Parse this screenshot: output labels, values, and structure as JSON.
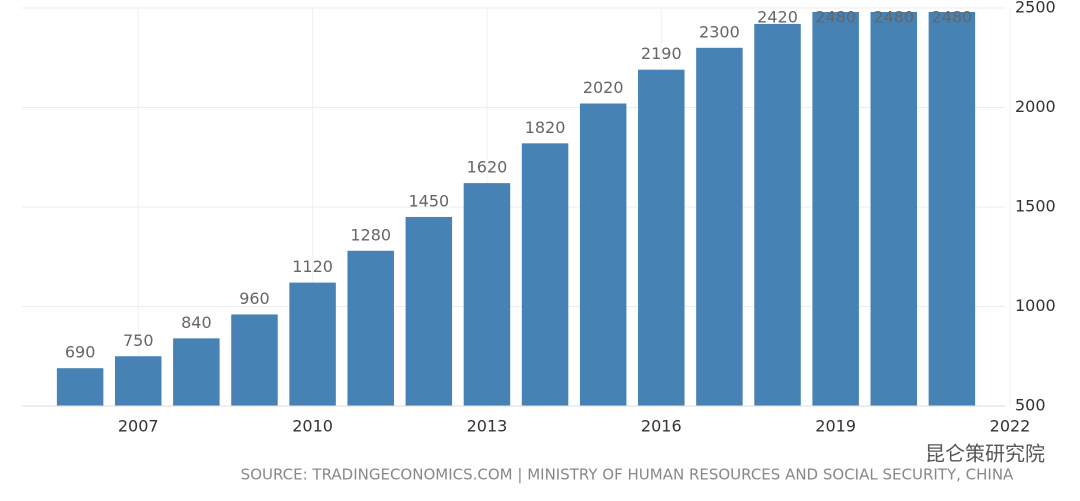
{
  "chart_data": {
    "type": "bar",
    "x": [
      2006,
      2007,
      2008,
      2009,
      2010,
      2011,
      2012,
      2013,
      2014,
      2015,
      2016,
      2017,
      2018,
      2019,
      2020,
      2021
    ],
    "values": [
      690,
      750,
      840,
      960,
      1120,
      1280,
      1450,
      1620,
      1820,
      2020,
      2190,
      2300,
      2420,
      2480,
      2480,
      2480
    ],
    "color": "#4682b4",
    "xlim": [
      2005,
      2022
    ],
    "xticks": [
      2007,
      2010,
      2013,
      2016,
      2019,
      2022
    ],
    "ylim": [
      500,
      2500
    ],
    "yticks": [
      500,
      1000,
      1500,
      2000,
      2500
    ],
    "grid": true,
    "source": "SOURCE: TRADINGECONOMICS.COM | MINISTRY OF HUMAN RESOURCES AND SOCIAL SECURITY, CHINA",
    "watermark": "昆仑策研究院"
  }
}
